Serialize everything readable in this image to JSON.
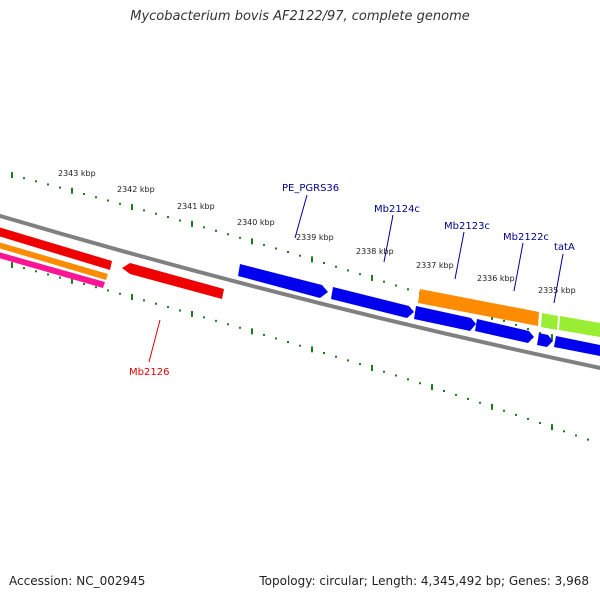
{
  "title": "Mycobacterium bovis AF2122/97, complete genome",
  "footer": {
    "accession": "Accession: NC_002945",
    "summary": "Topology: circular; Length: 4,345,492 bp; Genes: 3,968"
  },
  "scale": {
    "tick_color": "#1e7a1e",
    "labels": [
      "2343 kbp",
      "2342 kbp",
      "2341 kbp",
      "2340 kbp",
      "2339 kbp",
      "2338 kbp",
      "2337 kbp",
      "2336 kbp",
      "2335 kbp"
    ]
  },
  "genes": [
    {
      "label": "PE_PGRS36",
      "strand": "+",
      "color": "#0000ee",
      "label_color": "#00008b"
    },
    {
      "label": "Mb2124c",
      "strand": "+",
      "color": "#0000ee",
      "label_color": "#00008b"
    },
    {
      "label": "Mb2123c",
      "strand": "+",
      "color": "#0000ee",
      "label_color": "#00008b"
    },
    {
      "label": "Mb2122c",
      "strand": "+",
      "color": "#0000ee",
      "label_color": "#00008b"
    },
    {
      "label": "tatA",
      "strand": "+",
      "color": "#0000ee",
      "label_color": "#00008b"
    },
    {
      "label": "Mb2126",
      "strand": "-",
      "color": "#ee0000",
      "label_color": "#dd0000"
    }
  ],
  "feature_colors": {
    "cds_forward": "#0000ee",
    "cds_reverse": "#ee0000",
    "orange_track": "#ff8c00",
    "green_track": "#99ee33",
    "pink_track": "#ff1493",
    "backbone": "#808080"
  }
}
